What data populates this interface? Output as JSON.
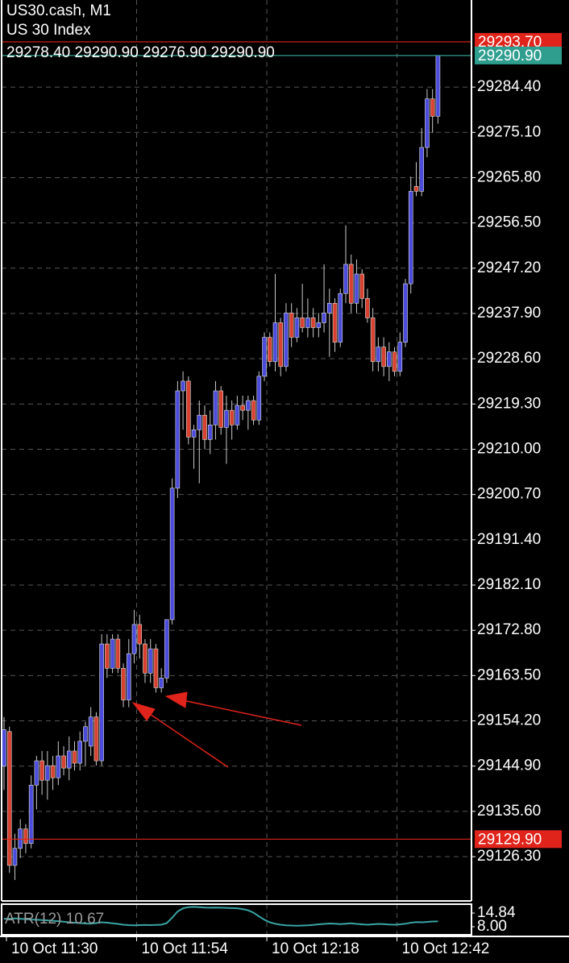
{
  "chart_data": [
    {
      "type": "candlestick",
      "title": "US30.cash, M1",
      "subtitle": "US 30 Index",
      "annotation": "29278.40 29290.90 29276.90 29290.90",
      "up_color": "#4b4bdc",
      "down_color": "#d8412f",
      "wick_color": "#c8c8c8",
      "grid": true,
      "x": [
        "10 Oct 11:30",
        "10 Oct 11:31",
        "10 Oct 11:32",
        "10 Oct 11:33",
        "10 Oct 11:34",
        "10 Oct 11:35",
        "10 Oct 11:36",
        "10 Oct 11:37",
        "10 Oct 11:38",
        "10 Oct 11:39",
        "10 Oct 11:40",
        "10 Oct 11:41",
        "10 Oct 11:42",
        "10 Oct 11:43",
        "10 Oct 11:44",
        "10 Oct 11:45",
        "10 Oct 11:46",
        "10 Oct 11:47",
        "10 Oct 11:48",
        "10 Oct 11:49",
        "10 Oct 11:50",
        "10 Oct 11:51",
        "10 Oct 11:52",
        "10 Oct 11:53",
        "10 Oct 11:54",
        "10 Oct 11:55",
        "10 Oct 11:56",
        "10 Oct 11:57",
        "10 Oct 11:58",
        "10 Oct 11:59",
        "10 Oct 12:00",
        "10 Oct 12:01",
        "10 Oct 12:02",
        "10 Oct 12:03",
        "10 Oct 12:04",
        "10 Oct 12:05",
        "10 Oct 12:06",
        "10 Oct 12:07",
        "10 Oct 12:08",
        "10 Oct 12:09",
        "10 Oct 12:10",
        "10 Oct 12:11",
        "10 Oct 12:12",
        "10 Oct 12:13",
        "10 Oct 12:14",
        "10 Oct 12:15",
        "10 Oct 12:16",
        "10 Oct 12:17",
        "10 Oct 12:18",
        "10 Oct 12:19",
        "10 Oct 12:20",
        "10 Oct 12:21",
        "10 Oct 12:22",
        "10 Oct 12:23",
        "10 Oct 12:24",
        "10 Oct 12:25",
        "10 Oct 12:26",
        "10 Oct 12:27",
        "10 Oct 12:28",
        "10 Oct 12:29",
        "10 Oct 12:30",
        "10 Oct 12:31",
        "10 Oct 12:32",
        "10 Oct 12:33",
        "10 Oct 12:34",
        "10 Oct 12:35",
        "10 Oct 12:36",
        "10 Oct 12:37",
        "10 Oct 12:38",
        "10 Oct 12:39",
        "10 Oct 12:40",
        "10 Oct 12:41",
        "10 Oct 12:42",
        "10 Oct 12:43",
        "10 Oct 12:44",
        "10 Oct 12:45",
        "10 Oct 12:46",
        "10 Oct 12:47",
        "10 Oct 12:48",
        "10 Oct 12:49",
        "10 Oct 12:50"
      ],
      "open": [
        29144.9,
        29152,
        29124.5,
        29128,
        29132,
        29129,
        29141,
        29146,
        29142,
        29145,
        29142.5,
        29147,
        29144.5,
        29148,
        29145.5,
        29150,
        29149,
        29155,
        29146,
        29170,
        29165,
        29171,
        29165,
        29158.5,
        29168,
        29174,
        29170,
        29164,
        29169,
        29161,
        29163,
        29175,
        29202,
        29222,
        29224,
        29212.5,
        29214,
        29217,
        29212,
        29215,
        29222,
        29214.5,
        29218,
        29215,
        29219,
        29218,
        29220,
        29216,
        29225,
        29233,
        29228,
        29236,
        29227,
        29238,
        29233,
        29237,
        29235,
        29237,
        29235,
        29236,
        29238,
        29240,
        29232,
        29242,
        29248,
        29240,
        29246,
        29241,
        29237,
        29228,
        29231,
        29227,
        29230,
        29226,
        29232,
        29244,
        29264,
        29263,
        29272,
        29282,
        29278.4
      ],
      "high": [
        29155,
        29153,
        29131,
        29134,
        29133,
        29143,
        29147,
        29148,
        29148,
        29147,
        29150,
        29149,
        29151,
        29150,
        29152,
        29154,
        29157,
        29156,
        29172,
        29172,
        29172,
        29172,
        29166,
        29171,
        29177,
        29176,
        29171,
        29171,
        29170,
        29165,
        29175,
        29204,
        29224,
        29226,
        29225,
        29215,
        29220,
        29219,
        29218,
        29224,
        29223,
        29221,
        29220,
        29221,
        29221,
        29221,
        29221,
        29226,
        29234,
        29234,
        29246,
        29237,
        29240,
        29240,
        29239,
        29244,
        29241,
        29239,
        29238,
        29248,
        29243,
        29241,
        29243,
        29256,
        29250,
        29249,
        29247,
        29243,
        29239,
        29233,
        29233,
        29232,
        29231,
        29234,
        29245,
        29266,
        29269,
        29276,
        29284,
        29284,
        29290.9
      ],
      "low": [
        29140,
        29123,
        29121.5,
        29126,
        29127,
        29128,
        29136,
        29139,
        29138,
        29140,
        29141,
        29143,
        29142,
        29144,
        29144,
        29145,
        29147,
        29145,
        29145,
        29163,
        29164,
        29164,
        29157,
        29157,
        29166,
        29167,
        29162,
        29162,
        29160,
        29160,
        29162,
        29174,
        29200,
        29214,
        29211,
        29206,
        29203,
        29210,
        29209,
        29212,
        29213,
        29207,
        29212,
        29214,
        29216,
        29214,
        29215,
        29215,
        29224,
        29227,
        29226,
        29225,
        29226,
        29231,
        29232,
        29234,
        29233,
        29233,
        29233,
        29234,
        29229,
        29230,
        29231,
        29240,
        29238,
        29238,
        29239,
        29236,
        29226,
        29226,
        29225,
        29224,
        29225,
        29225,
        29231,
        29242,
        29262,
        29262,
        29270,
        29275,
        29276.9
      ],
      "close": [
        29152.4,
        29124.5,
        29128,
        29132,
        29129,
        29141,
        29146,
        29142,
        29145,
        29142.5,
        29147,
        29144.5,
        29148,
        29145.5,
        29150,
        29153,
        29155,
        29146,
        29170,
        29165,
        29171,
        29165,
        29158.5,
        29168,
        29174,
        29170,
        29164,
        29169,
        29161,
        29163,
        29175,
        29202,
        29222,
        29224,
        29212.5,
        29214,
        29217,
        29212,
        29215,
        29222,
        29214.5,
        29218,
        29215,
        29219,
        29218,
        29220,
        29216,
        29225,
        29233,
        29228,
        29236,
        29227,
        29238,
        29233,
        29237,
        29235,
        29237,
        29235,
        29236,
        29238,
        29240,
        29232,
        29242,
        29248,
        29240,
        29246,
        29241,
        29237,
        29228,
        29231,
        29227,
        29230,
        29226,
        29232,
        29244,
        29263,
        29263,
        29272,
        29282,
        29278.4,
        29290.9
      ],
      "ylim": [
        29117.2,
        29302.3
      ],
      "yticks": [
        {
          "value": 29126.3,
          "label": "29126.30"
        },
        {
          "value": 29135.6,
          "label": "29135.60"
        },
        {
          "value": 29144.9,
          "label": "29144.90"
        },
        {
          "value": 29154.2,
          "label": "29154.20"
        },
        {
          "value": 29163.5,
          "label": "29163.50"
        },
        {
          "value": 29172.8,
          "label": "29172.80"
        },
        {
          "value": 29182.1,
          "label": "29182.10"
        },
        {
          "value": 29191.4,
          "label": "29191.40"
        },
        {
          "value": 29200.7,
          "label": "29200.70"
        },
        {
          "value": 29210,
          "label": "29210.00"
        },
        {
          "value": 29219.3,
          "label": "29219.30"
        },
        {
          "value": 29228.6,
          "label": "29228.60"
        },
        {
          "value": 29237.9,
          "label": "29237.90"
        },
        {
          "value": 29247.2,
          "label": "29247.20"
        },
        {
          "value": 29256.5,
          "label": "29256.50"
        },
        {
          "value": 29265.8,
          "label": "29265.80"
        },
        {
          "value": 29275.1,
          "label": "29275.10"
        },
        {
          "value": 29284.4,
          "label": "29284.40"
        }
      ],
      "price_lines": [
        {
          "value": 29293.7,
          "label": "29293.70",
          "color": "#e0241b"
        },
        {
          "value": 29290.9,
          "label": "29290.90",
          "color": "#2f9e8f"
        },
        {
          "value": 29129.9,
          "label": "29129.90",
          "color": "#e0241b"
        }
      ]
    },
    {
      "type": "line",
      "title": "ATR(12) 10.67",
      "color": "#3aa3a3",
      "values": [
        12.0,
        11.9,
        12.2,
        12.0,
        11.8,
        11.6,
        11.5,
        11.3,
        11.2,
        11.0,
        10.8,
        10.5,
        10.2,
        10.0,
        9.8,
        9.6,
        9.5,
        9.8,
        10.2,
        10.0,
        9.7,
        9.4,
        9.0,
        8.8,
        8.7,
        8.8,
        8.9,
        8.8,
        8.9,
        9.0,
        9.8,
        12.5,
        15.6,
        17.2,
        17.8,
        17.9,
        17.8,
        17.6,
        17.5,
        17.6,
        17.5,
        17.4,
        17.3,
        17.2,
        16.8,
        16.2,
        15.0,
        13.2,
        11.5,
        10.2,
        9.5,
        9.0,
        8.7,
        8.6,
        8.5,
        8.6,
        8.7,
        8.9,
        9.2,
        9.4,
        9.6,
        9.5,
        9.3,
        9.5,
        9.7,
        9.4,
        9.2,
        9.0,
        9.2,
        9.4,
        9.3,
        9.1,
        9.0,
        9.2,
        9.5,
        10.0,
        10.3,
        10.2,
        10.4,
        10.6,
        10.67
      ],
      "ylim": [
        3.98,
        19.27
      ],
      "yticks": [
        14.84,
        {
          "value": 8,
          "label": "8.00"
        }
      ]
    }
  ]
}
